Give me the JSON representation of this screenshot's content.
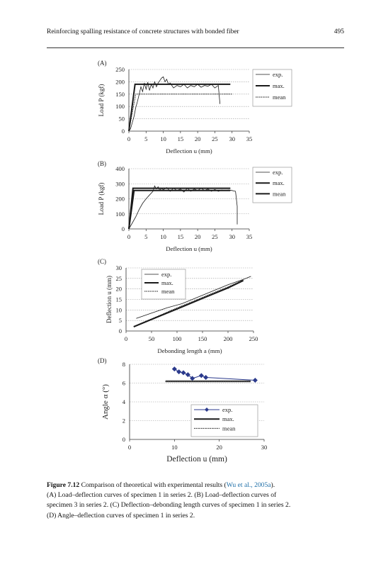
{
  "header": {
    "running_title": "Reinforcing spalling resistance of concrete structures with bonded fiber",
    "page_number": "495"
  },
  "chart_data": [
    {
      "panel": "(A)",
      "type": "line",
      "xlabel": "Deflection u (mm)",
      "ylabel": "Load P (kgf)",
      "xlim": [
        0,
        35
      ],
      "ylim": [
        0,
        250
      ],
      "xticks": [
        "0",
        "5",
        "10",
        "15",
        "20",
        "25",
        "30",
        "35"
      ],
      "yticks": [
        "0",
        "50",
        "100",
        "150",
        "200",
        "250"
      ],
      "legend_position": "right",
      "series": [
        {
          "name": "exp.",
          "style": "thin",
          "points": [
            [
              0,
              0
            ],
            [
              0.5,
              10
            ],
            [
              1,
              35
            ],
            [
              1.5,
              60
            ],
            [
              2,
              95
            ],
            [
              2.5,
              120
            ],
            [
              3,
              150
            ],
            [
              3.5,
              180
            ],
            [
              4,
              160
            ],
            [
              4.5,
              195
            ],
            [
              5,
              170
            ],
            [
              5.5,
              198
            ],
            [
              6,
              165
            ],
            [
              6.5,
              190
            ],
            [
              7,
              175
            ],
            [
              7.5,
              200
            ],
            [
              8,
              180
            ],
            [
              8.5,
              195
            ],
            [
              9,
              205
            ],
            [
              9.5,
              215
            ],
            [
              10,
              220
            ],
            [
              10.5,
              200
            ],
            [
              11,
              210
            ],
            [
              11.5,
              190
            ],
            [
              12,
              195
            ],
            [
              13,
              175
            ],
            [
              14,
              185
            ],
            [
              15,
              180
            ],
            [
              16,
              190
            ],
            [
              17,
              175
            ],
            [
              18,
              185
            ],
            [
              19,
              180
            ],
            [
              20,
              190
            ],
            [
              21,
              178
            ],
            [
              22,
              185
            ],
            [
              23,
              182
            ],
            [
              24,
              190
            ],
            [
              25,
              175
            ],
            [
              26,
              185
            ],
            [
              26.3,
              140
            ],
            [
              26.5,
              110
            ]
          ]
        },
        {
          "name": "max.",
          "style": "thick",
          "points": [
            [
              0,
              0
            ],
            [
              1.8,
              190
            ],
            [
              29.5,
              190
            ]
          ]
        },
        {
          "name": "mean",
          "style": "dotted",
          "points": [
            [
              0,
              0
            ],
            [
              2,
              150
            ],
            [
              30,
              150
            ]
          ]
        }
      ]
    },
    {
      "panel": "(B)",
      "type": "line",
      "xlabel": "Deflection u (mm)",
      "ylabel": "Load P (kgf)",
      "xlim": [
        0,
        35
      ],
      "ylim": [
        0,
        400
      ],
      "xticks": [
        "0",
        "5",
        "10",
        "15",
        "20",
        "25",
        "30",
        "35"
      ],
      "yticks": [
        "0",
        "100",
        "200",
        "300",
        "400"
      ],
      "legend_position": "right",
      "series": [
        {
          "name": "exp.",
          "style": "thin",
          "points": [
            [
              0,
              0
            ],
            [
              1,
              40
            ],
            [
              2,
              80
            ],
            [
              3,
              130
            ],
            [
              4,
              170
            ],
            [
              5,
              200
            ],
            [
              6,
              225
            ],
            [
              7,
              250
            ],
            [
              7.5,
              285
            ],
            [
              8,
              265
            ],
            [
              8.5,
              280
            ],
            [
              9,
              255
            ],
            [
              9.5,
              270
            ],
            [
              10,
              260
            ],
            [
              11,
              275
            ],
            [
              12,
              250
            ],
            [
              13,
              270
            ],
            [
              14,
              255
            ],
            [
              15,
              265
            ],
            [
              16,
              245
            ],
            [
              17,
              270
            ],
            [
              18,
              250
            ],
            [
              19,
              265
            ],
            [
              20,
              255
            ],
            [
              21,
              270
            ],
            [
              22,
              255
            ],
            [
              23,
              265
            ],
            [
              24,
              250
            ],
            [
              25,
              262
            ],
            [
              26,
              250
            ],
            [
              27,
              258
            ],
            [
              28,
              255
            ],
            [
              29,
              258
            ],
            [
              30,
              255
            ],
            [
              31,
              250
            ],
            [
              31.5,
              150
            ],
            [
              31.5,
              30
            ]
          ]
        },
        {
          "name": "max.",
          "style": "thick",
          "points": [
            [
              0,
              0
            ],
            [
              1.2,
              270
            ],
            [
              29.5,
              270
            ]
          ]
        },
        {
          "name": "mean",
          "style": "thick",
          "points": [
            [
              0,
              0
            ],
            [
              1.5,
              255
            ],
            [
              29.5,
              255
            ]
          ]
        }
      ]
    },
    {
      "panel": "(C)",
      "type": "line",
      "xlabel": "Debonding length a (mm)",
      "ylabel": "Deflection u (mm)",
      "xlim": [
        0,
        250
      ],
      "ylim": [
        0,
        30
      ],
      "xticks": [
        "0",
        "50",
        "100",
        "150",
        "200",
        "250"
      ],
      "yticks": [
        "0",
        "5",
        "10",
        "15",
        "20",
        "25",
        "30"
      ],
      "legend_position": "top-left",
      "series": [
        {
          "name": "exp.",
          "style": "thin",
          "points": [
            [
              20,
              6
            ],
            [
              50,
              8.5
            ],
            [
              80,
              11
            ],
            [
              110,
              13
            ],
            [
              140,
              16
            ],
            [
              170,
              19
            ],
            [
              200,
              22
            ],
            [
              230,
              24.5
            ],
            [
              245,
              26
            ]
          ]
        },
        {
          "name": "max.",
          "style": "thick",
          "points": [
            [
              15,
              2
            ],
            [
              60,
              6.5
            ],
            [
              100,
              10.5
            ],
            [
              150,
              15.5
            ],
            [
              200,
              20.5
            ],
            [
              230,
              24
            ]
          ]
        },
        {
          "name": "mean",
          "style": "dotted",
          "points": [
            [
              15,
              2.2
            ],
            [
              60,
              6.8
            ],
            [
              100,
              11
            ],
            [
              150,
              16
            ],
            [
              200,
              21
            ],
            [
              230,
              24.3
            ]
          ]
        }
      ]
    },
    {
      "panel": "(D)",
      "type": "line",
      "xlabel": "Deflection u (mm)",
      "ylabel": "Angle α (°)",
      "xlim": [
        0,
        30
      ],
      "ylim": [
        0,
        8
      ],
      "xticks": [
        "0",
        "10",
        "20",
        "30"
      ],
      "yticks": [
        "0",
        "2",
        "4",
        "6",
        "8"
      ],
      "legend_position": "bottom-right",
      "series": [
        {
          "name": "exp.",
          "style": "markers",
          "points": [
            [
              10,
              7.5
            ],
            [
              11,
              7.2
            ],
            [
              12,
              7.1
            ],
            [
              13,
              6.9
            ],
            [
              14,
              6.5
            ],
            [
              16,
              6.8
            ],
            [
              17,
              6.6
            ],
            [
              28,
              6.3
            ]
          ]
        },
        {
          "name": "max.",
          "style": "thick",
          "points": [
            [
              8,
              6.2
            ],
            [
              27,
              6.2
            ]
          ]
        },
        {
          "name": "mean",
          "style": "dotted",
          "points": [
            [
              8,
              6.15
            ],
            [
              27,
              6.15
            ]
          ]
        }
      ]
    }
  ],
  "caption": {
    "label": "Figure 7.12",
    "text_before_cite": "Comparison of theoretical with experimental results (",
    "cite": "Wu et al., 2005a",
    "text_after_cite": ").",
    "lines": [
      "(A) Load–deflection curves of specimen 1 in series 2. (B) Load–deflection curves of",
      "specimen 3 in series 2. (C) Deflection–debonding length curves of specimen 1 in series 2.",
      "(D) Angle–deflection curves of specimen 1 in series 2."
    ]
  },
  "colors": {
    "text": "#111111",
    "cite_link": "#1f6fa8",
    "marker": "#2b3a8c"
  }
}
